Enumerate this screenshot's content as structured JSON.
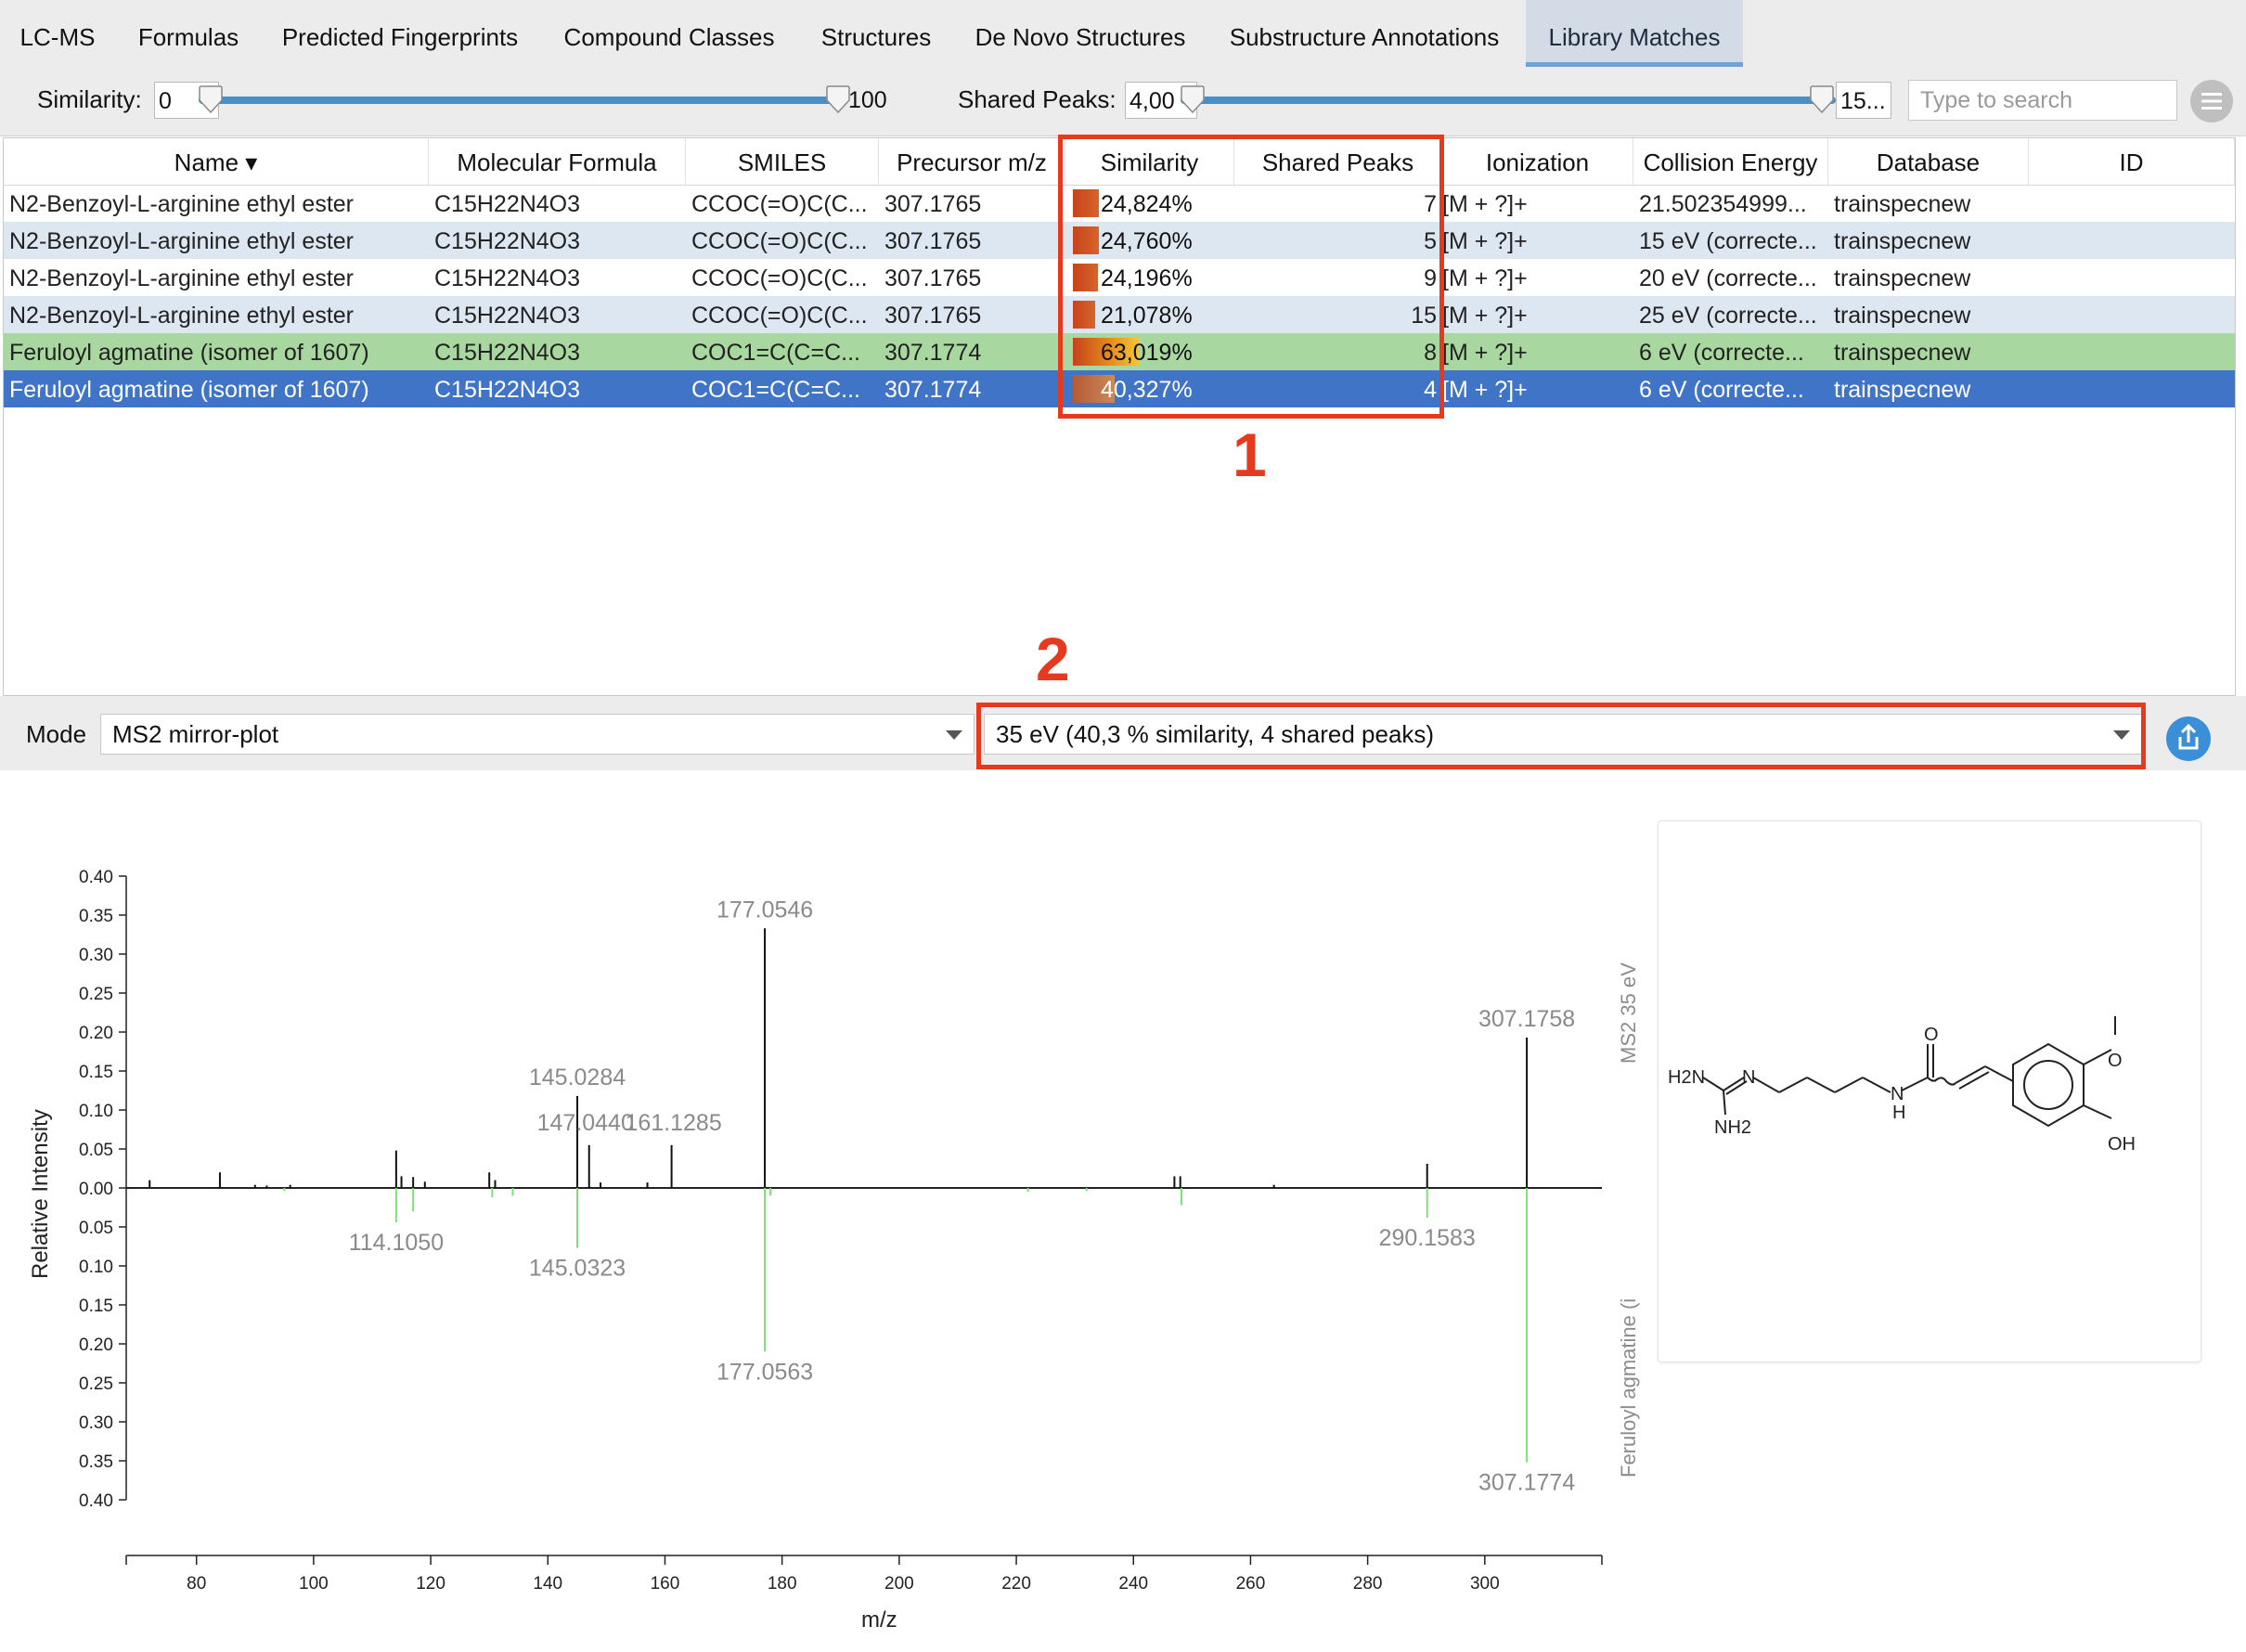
{
  "tabs": [
    {
      "label": "LC-MS"
    },
    {
      "label": "Formulas"
    },
    {
      "label": "Predicted Fingerprints"
    },
    {
      "label": "Compound Classes"
    },
    {
      "label": "Structures"
    },
    {
      "label": "De Novo Structures"
    },
    {
      "label": "Substructure Annotations"
    },
    {
      "label": "Library Matches",
      "active": true
    }
  ],
  "filters": {
    "similarity_label": "Similarity:",
    "similarity_min": "0",
    "similarity_max": "100",
    "shared_peaks_label": "Shared Peaks:",
    "shared_peaks_min": "4,00",
    "shared_peaks_max": "15...",
    "search_placeholder": "Type to search"
  },
  "table": {
    "columns": [
      "Name ▾",
      "Molecular Formula",
      "SMILES",
      "Precursor m/z",
      "Similarity",
      "Shared Peaks",
      "Ionization",
      "Collision Energy",
      "Database",
      "ID"
    ],
    "rows": [
      {
        "name": "N2-Benzoyl-L-arginine ethyl ester",
        "formula": "C15H22N4O3",
        "smiles": "CCOC(=O)C(C...",
        "mz": "307.1765",
        "similarity": "24,824%",
        "sim_value": 0.24824,
        "peaks": "7",
        "ionization": "[M + ?]+",
        "energy": "21.502354999...",
        "database": "trainspecnew",
        "style": "plain"
      },
      {
        "name": "N2-Benzoyl-L-arginine ethyl ester",
        "formula": "C15H22N4O3",
        "smiles": "CCOC(=O)C(C...",
        "mz": "307.1765",
        "similarity": "24,760%",
        "sim_value": 0.2476,
        "peaks": "5",
        "ionization": "[M + ?]+",
        "energy": "15 eV (correcte...",
        "database": "trainspecnew",
        "style": "alt"
      },
      {
        "name": "N2-Benzoyl-L-arginine ethyl ester",
        "formula": "C15H22N4O3",
        "smiles": "CCOC(=O)C(C...",
        "mz": "307.1765",
        "similarity": "24,196%",
        "sim_value": 0.24196,
        "peaks": "9",
        "ionization": "[M + ?]+",
        "energy": "20 eV (correcte...",
        "database": "trainspecnew",
        "style": "plain"
      },
      {
        "name": "N2-Benzoyl-L-arginine ethyl ester",
        "formula": "C15H22N4O3",
        "smiles": "CCOC(=O)C(C...",
        "mz": "307.1765",
        "similarity": "21,078%",
        "sim_value": 0.21078,
        "peaks": "15",
        "ionization": "[M + ?]+",
        "energy": "25 eV (correcte...",
        "database": "trainspecnew",
        "style": "alt"
      },
      {
        "name": "Feruloyl agmatine (isomer of 1607)",
        "formula": "C15H22N4O3",
        "smiles": "COC1=C(C=C...",
        "mz": "307.1774",
        "similarity": "63,019%",
        "sim_value": 0.63019,
        "peaks": "8",
        "ionization": "[M + ?]+",
        "energy": "6 eV (correcte...",
        "database": "trainspecnew",
        "style": "green"
      },
      {
        "name": "Feruloyl agmatine (isomer of 1607)",
        "formula": "C15H22N4O3",
        "smiles": "COC1=C(C=C...",
        "mz": "307.1774",
        "similarity": "40,327%",
        "sim_value": 0.40327,
        "peaks": "4",
        "ionization": "[M + ?]+",
        "energy": "6 eV (correcte...",
        "database": "trainspecnew",
        "style": "sel"
      }
    ]
  },
  "annotations": {
    "label1": "1",
    "label2": "2"
  },
  "mode": {
    "label": "Mode",
    "selected": "MS2 mirror-plot",
    "spectrum_selected": "35 eV (40,3 % similarity, 4 shared peaks)"
  },
  "plot": {
    "y_axis_label": "Relative Intensity",
    "x_axis_label": "m/z",
    "top_side_label": "MS2 35 eV",
    "bottom_side_label": "Feruloyl agmatine (i"
  },
  "structure": {
    "atoms": [
      "H2N",
      "N",
      "NH2",
      "N",
      "H",
      "O",
      "O",
      "OH"
    ]
  },
  "colors": {
    "accent": "#3f74c6",
    "match_green": "#a8d8a0",
    "annotation_red": "#e63a1f",
    "library_peak": "#7ee07a"
  },
  "chart_data": {
    "type": "bar",
    "title": "",
    "xlabel": "m/z",
    "ylabel": "Relative Intensity",
    "xlim": [
      68,
      320
    ],
    "ylim": [
      -0.4,
      0.4
    ],
    "x_ticks": [
      80,
      100,
      120,
      140,
      160,
      180,
      200,
      220,
      240,
      260,
      280,
      300
    ],
    "y_ticks": [
      0.4,
      0.35,
      0.3,
      0.25,
      0.2,
      0.15,
      0.1,
      0.05,
      0.0,
      0.05,
      0.1,
      0.15,
      0.2,
      0.25,
      0.3,
      0.35,
      0.4
    ],
    "series": [
      {
        "name": "MS2 35 eV",
        "direction": "up",
        "points": [
          {
            "mz": 72.0,
            "i": 0.01
          },
          {
            "mz": 84.0,
            "i": 0.02
          },
          {
            "mz": 90.0,
            "i": 0.004
          },
          {
            "mz": 92.0,
            "i": 0.003
          },
          {
            "mz": 96.0,
            "i": 0.004
          },
          {
            "mz": 114.1,
            "i": 0.048
          },
          {
            "mz": 115.0,
            "i": 0.015
          },
          {
            "mz": 117.0,
            "i": 0.014
          },
          {
            "mz": 119.0,
            "i": 0.008
          },
          {
            "mz": 130.0,
            "i": 0.02
          },
          {
            "mz": 131.0,
            "i": 0.01
          },
          {
            "mz": 145.0284,
            "i": 0.118,
            "label": "145.0284"
          },
          {
            "mz": 147.044,
            "i": 0.055,
            "label": "147.0440"
          },
          {
            "mz": 149.0,
            "i": 0.007
          },
          {
            "mz": 157.0,
            "i": 0.007
          },
          {
            "mz": 161.1285,
            "i": 0.055,
            "label": "161.1285"
          },
          {
            "mz": 177.0546,
            "i": 0.333,
            "label": "177.0546"
          },
          {
            "mz": 247.0,
            "i": 0.015
          },
          {
            "mz": 248.0,
            "i": 0.015
          },
          {
            "mz": 264.0,
            "i": 0.004
          },
          {
            "mz": 290.1583,
            "i": 0.031
          },
          {
            "mz": 307.1758,
            "i": 0.193,
            "label": "307.1758"
          }
        ]
      },
      {
        "name": "Feruloyl agmatine (i",
        "direction": "down",
        "points": [
          {
            "mz": 95.0,
            "i": 0.004
          },
          {
            "mz": 114.105,
            "i": 0.044,
            "label": "114.1050"
          },
          {
            "mz": 117.0,
            "i": 0.03
          },
          {
            "mz": 130.5,
            "i": 0.012
          },
          {
            "mz": 134.0,
            "i": 0.01
          },
          {
            "mz": 145.0323,
            "i": 0.077,
            "label": "145.0323"
          },
          {
            "mz": 177.0563,
            "i": 0.21,
            "label": "177.0563"
          },
          {
            "mz": 178.0,
            "i": 0.01
          },
          {
            "mz": 222.0,
            "i": 0.005
          },
          {
            "mz": 232.0,
            "i": 0.004
          },
          {
            "mz": 248.2,
            "i": 0.022
          },
          {
            "mz": 290.1583,
            "i": 0.038,
            "label": "290.1583"
          },
          {
            "mz": 307.1774,
            "i": 0.352,
            "label": "307.1774"
          }
        ]
      }
    ]
  }
}
